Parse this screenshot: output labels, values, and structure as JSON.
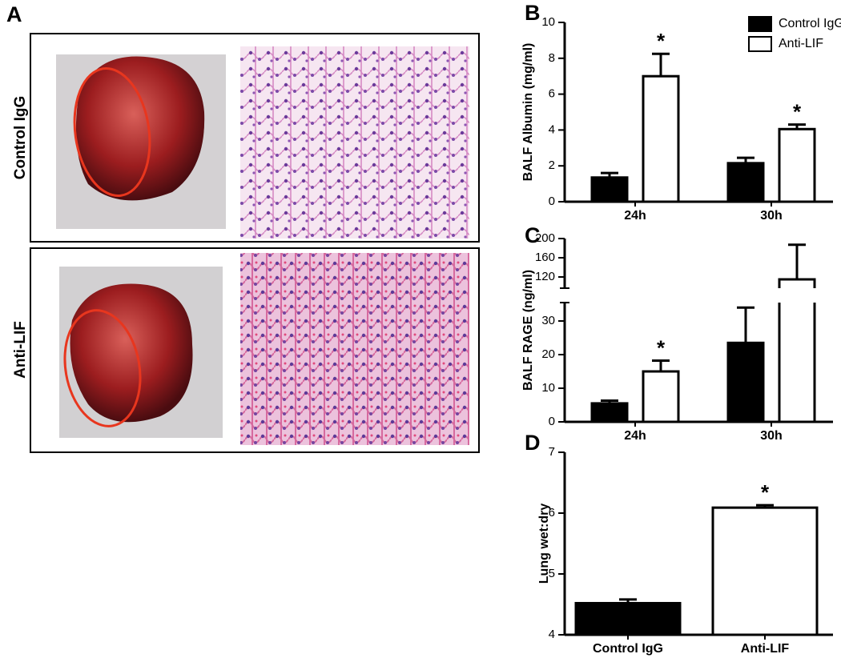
{
  "panel_a": {
    "label": "A",
    "rows": [
      "Control IgG",
      "Anti-LIF"
    ]
  },
  "chart_data": [
    {
      "type": "bar",
      "panel_label": "B",
      "ylabel": "BALF Albumin (mg/ml)",
      "categories": [
        "24h",
        "30h"
      ],
      "series": [
        {
          "name": "Control IgG",
          "color": "#000000",
          "values": [
            1.35,
            2.15
          ],
          "errors": [
            0.25,
            0.3
          ]
        },
        {
          "name": "Anti-LIF",
          "color": "#ffffff",
          "values": [
            7.0,
            4.05
          ],
          "errors": [
            1.25,
            0.25
          ],
          "significance": [
            "*",
            "*"
          ]
        }
      ],
      "ylim": [
        0,
        10
      ],
      "yticks": [
        0,
        2,
        4,
        6,
        8,
        10
      ],
      "legend": "upper right"
    },
    {
      "type": "bar",
      "panel_label": "C",
      "ylabel": "BALF RAGE (ng/ml)",
      "categories": [
        "24h",
        "30h"
      ],
      "series": [
        {
          "name": "Control IgG",
          "color": "#000000",
          "values": [
            5.5,
            23.5
          ],
          "errors": [
            0.8,
            10.5
          ]
        },
        {
          "name": "Anti-LIF",
          "color": "#ffffff",
          "values": [
            15,
            115
          ],
          "errors": [
            3.2,
            72
          ],
          "significance": [
            "*",
            null
          ]
        }
      ],
      "ylim": [
        0,
        200
      ],
      "ybreak": [
        35,
        100
      ],
      "yticks": [
        0,
        10,
        20,
        30,
        120,
        160,
        200
      ]
    },
    {
      "type": "bar",
      "panel_label": "D",
      "ylabel": "Lung wet:dry",
      "categories": [
        "Control IgG",
        "Anti-LIF"
      ],
      "values": [
        4.52,
        6.09
      ],
      "errors": [
        0.06,
        0.04
      ],
      "colors": [
        "#000000",
        "#ffffff"
      ],
      "significance": [
        null,
        "*"
      ],
      "ylim": [
        4,
        7
      ],
      "yticks": [
        4,
        5,
        6,
        7
      ]
    }
  ]
}
